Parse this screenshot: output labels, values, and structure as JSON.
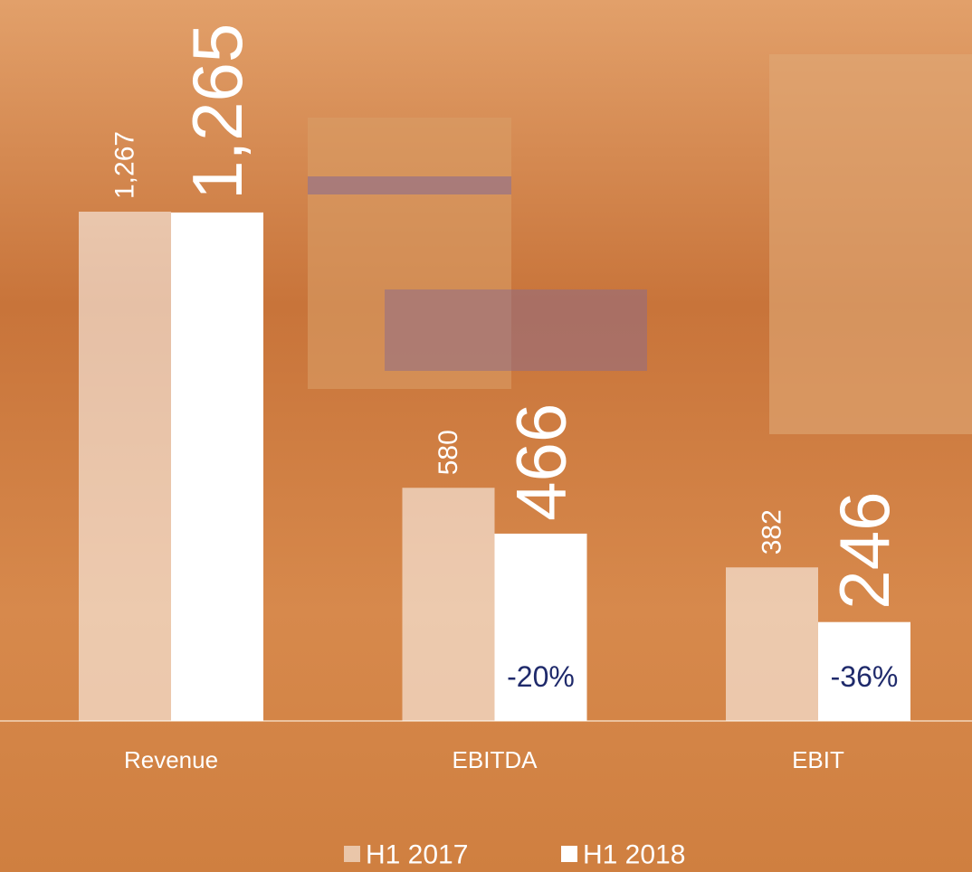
{
  "chart_data": {
    "type": "bar",
    "categories": [
      "Revenue",
      "EBITDA",
      "EBIT"
    ],
    "series": [
      {
        "name": "H1 2017",
        "color": "rgba(255,255,255,0.55)",
        "values": [
          1267,
          580,
          382
        ],
        "value_labels": [
          "1,267",
          "580",
          "382"
        ]
      },
      {
        "name": "H1 2018",
        "color": "#ffffff",
        "values": [
          1265,
          466,
          246
        ],
        "value_labels": [
          "1,265",
          "466",
          "246"
        ]
      }
    ],
    "change_labels": [
      null,
      "-20%",
      "-36%"
    ],
    "change_color": "#1f2a6b",
    "legend": "bottom"
  }
}
